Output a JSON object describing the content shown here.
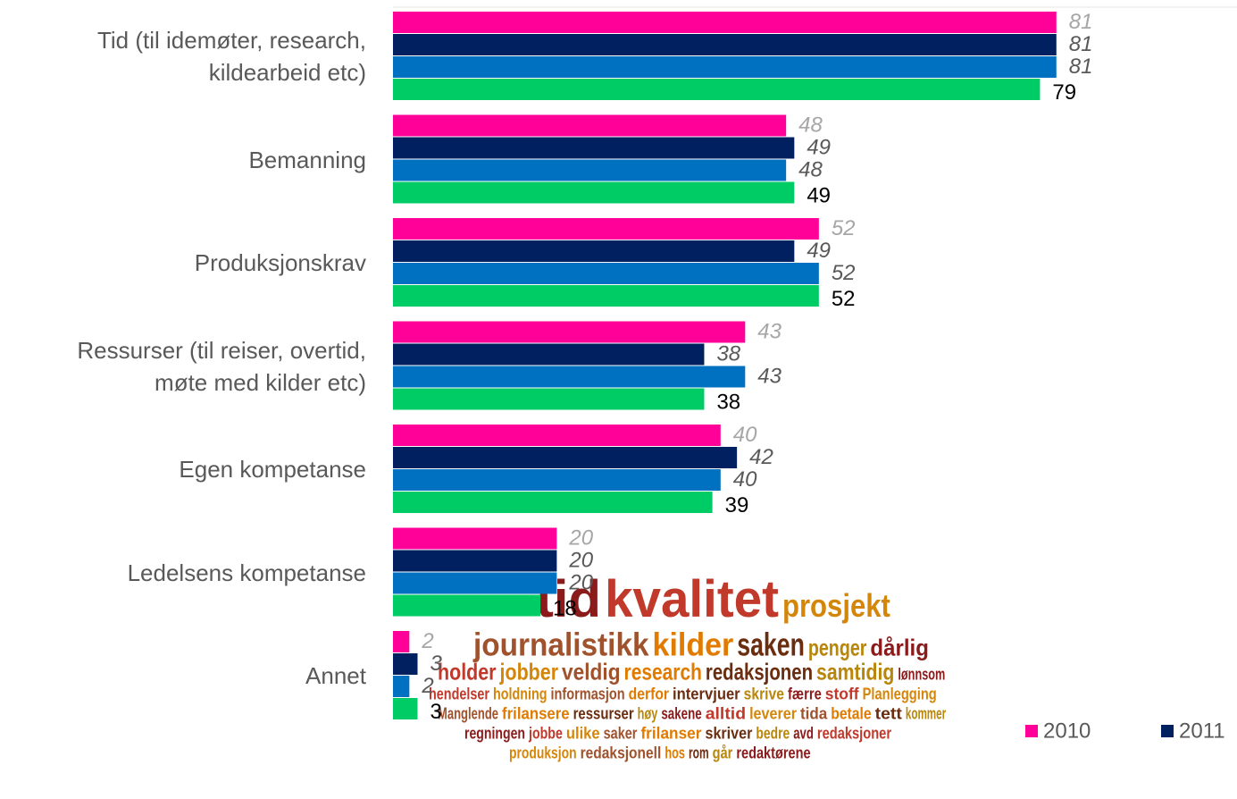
{
  "chart_data": {
    "type": "bar",
    "orientation": "horizontal",
    "categories": [
      "Tid (til idemøter, research,\nkildearbeid etc)",
      "Bemanning",
      "Produksjonskrav",
      "Ressurser (til reiser, overtid,\nmøte med kilder etc)",
      "Egen kompetanse",
      "Ledelsens kompetanse",
      "Annet"
    ],
    "series": [
      {
        "name": "2010",
        "color": "#ff0099",
        "values": [
          81,
          48,
          52,
          43,
          40,
          20,
          2
        ]
      },
      {
        "name": "2011",
        "color": "#002060",
        "values": [
          81,
          49,
          49,
          38,
          42,
          20,
          3
        ]
      },
      {
        "color": "#0070c0",
        "values": [
          81,
          48,
          52,
          43,
          40,
          20,
          2
        ]
      },
      {
        "color": "#00cc66",
        "values": [
          79,
          49,
          52,
          38,
          39,
          18,
          3
        ]
      }
    ],
    "xlim": [
      0,
      100
    ],
    "legend": "bottom-right"
  },
  "word_cloud": {
    "words": [
      "tid",
      "kvalitet",
      "prosjekt",
      "journalistikk",
      "kilder",
      "saken",
      "penger",
      "dårlig",
      "holder",
      "jobber",
      "veldig",
      "research",
      "redaksjonen",
      "samtidig",
      "lønnsom",
      "hendelser",
      "holdning",
      "informasjon",
      "derfor",
      "intervjuer",
      "skrive",
      "færre",
      "stoff",
      "Planlegging",
      "Manglende",
      "frilansere",
      "ressurser",
      "høy",
      "sakene",
      "alltid",
      "leverer",
      "tida",
      "betale",
      "tett",
      "kommer",
      "regningen",
      "jobbe",
      "ulike",
      "saker",
      "frilanser",
      "skriver",
      "bedre",
      "avd",
      "redaksjoner",
      "produksjon",
      "redaksjonell",
      "hos",
      "rom",
      "går",
      "redaktørene"
    ]
  }
}
